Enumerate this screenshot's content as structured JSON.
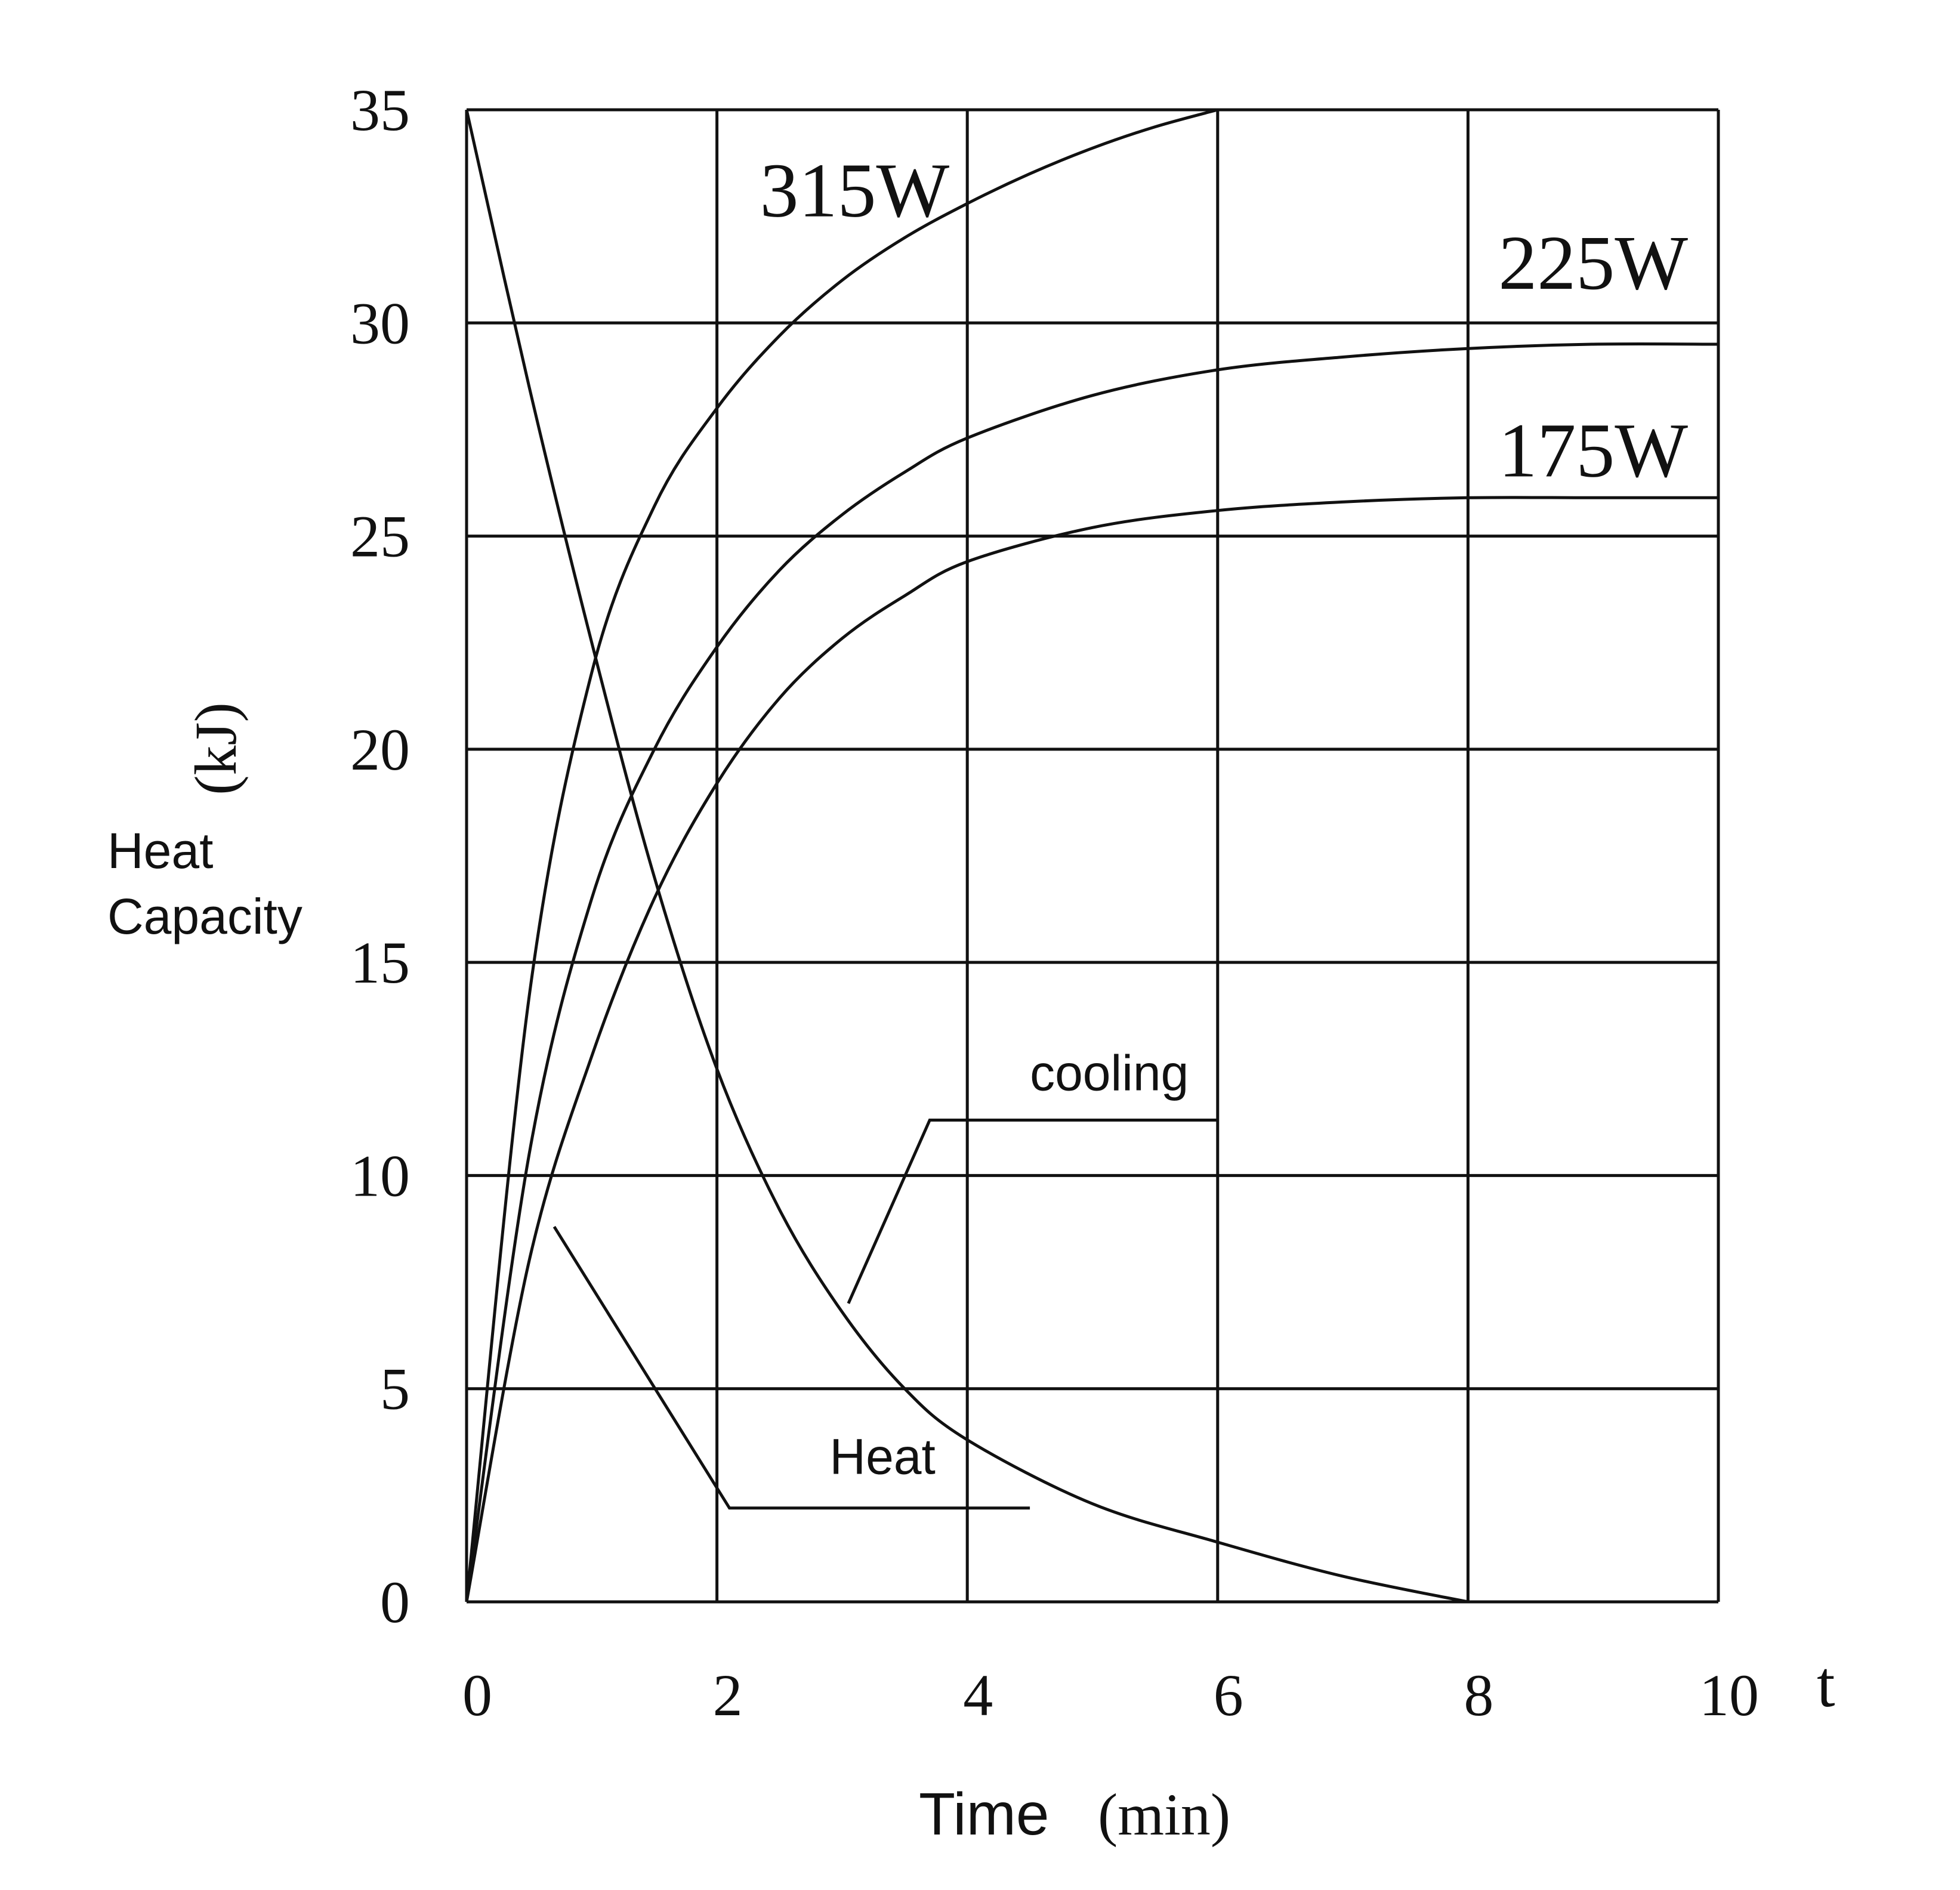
{
  "chart_data": {
    "type": "line",
    "title": "",
    "xlabel": "Time",
    "xunit": "(min)",
    "x_axis_symbol": "t",
    "ylabel": "Heat\nCapacity",
    "ylabel_lines": [
      "Heat",
      "Capacity"
    ],
    "yunit": "(kJ)",
    "xlim": [
      0,
      10
    ],
    "ylim": [
      0,
      35
    ],
    "grid": true,
    "xticks": [
      "0",
      "2",
      "4",
      "6",
      "8",
      "10"
    ],
    "yticks": [
      "0",
      "5",
      "10",
      "15",
      "20",
      "25",
      "30",
      "35"
    ],
    "series": [
      {
        "name": "315W",
        "x": [
          0,
          0.5,
          1,
          1.5,
          2,
          2.5,
          3,
          3.5,
          4,
          4.5,
          5,
          5.5,
          6
        ],
        "y": [
          0,
          14.2,
          21.8,
          25.7,
          28.0,
          29.7,
          31.0,
          32.0,
          32.8,
          33.5,
          34.1,
          34.6,
          35.0
        ]
      },
      {
        "name": "225W",
        "x": [
          0,
          0.5,
          1,
          1.5,
          2,
          2.5,
          3,
          3.5,
          4,
          5,
          6,
          7,
          8,
          9,
          10
        ],
        "y": [
          0,
          10.5,
          16.5,
          20.0,
          22.4,
          24.2,
          25.5,
          26.5,
          27.3,
          28.3,
          28.9,
          29.2,
          29.4,
          29.5,
          29.5
        ]
      },
      {
        "name": "175W",
        "x": [
          0,
          0.5,
          1,
          1.5,
          2,
          2.5,
          3,
          3.5,
          4,
          5,
          6,
          7,
          8,
          9,
          10
        ],
        "y": [
          0,
          8.0,
          12.8,
          16.5,
          19.2,
          21.2,
          22.6,
          23.6,
          24.4,
          25.2,
          25.6,
          25.8,
          25.9,
          25.9,
          25.9
        ]
      },
      {
        "name": "cooling",
        "x": [
          0,
          0.5,
          1,
          1.5,
          2,
          2.5,
          3,
          3.5,
          4,
          5,
          6,
          7,
          8
        ],
        "y": [
          35,
          28.5,
          22.5,
          17.0,
          12.5,
          9.2,
          6.8,
          5.0,
          3.8,
          2.3,
          1.4,
          0.6,
          0
        ]
      }
    ],
    "annotations": [
      {
        "text": "315W",
        "x": 3.1,
        "y": 32.5
      },
      {
        "text": "225W",
        "x": 9.0,
        "y": 30.8
      },
      {
        "text": "175W",
        "x": 9.0,
        "y": 26.4
      },
      {
        "text": "cooling",
        "x": 4.5,
        "y": 12.0
      },
      {
        "text": "Heat",
        "x": 2.9,
        "y": 3.0
      }
    ]
  }
}
